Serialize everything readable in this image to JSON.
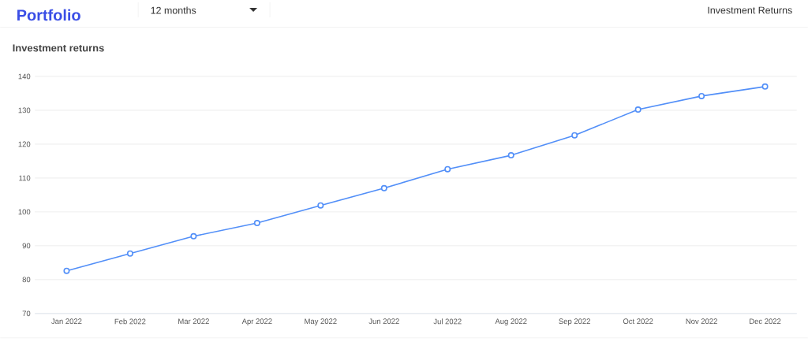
{
  "chart_data": {
    "type": "line",
    "title": "Investment returns",
    "annotations": [
      "Portfolio",
      "12 months",
      "Investment Returns"
    ],
    "categories": [
      "Jan 2022",
      "Feb 2022",
      "Mar 2022",
      "Apr 2022",
      "May 2022",
      "Jun 2022",
      "Jul 2022",
      "Aug 2022",
      "Sep 2022",
      "Oct 2022",
      "Nov 2022",
      "Dec 2022"
    ],
    "series": [
      {
        "color": "#528ff8",
        "values": [
          82.6,
          87.7,
          92.8,
          96.7,
          101.9,
          107.0,
          112.6,
          116.7,
          122.6,
          130.2,
          134.2,
          137.0
        ]
      }
    ],
    "ylim": [
      70,
      140
    ],
    "yticks": [
      70,
      80,
      90,
      100,
      110,
      120,
      130,
      140
    ],
    "grid": "y",
    "marker": "circle",
    "line_style": "solid"
  }
}
